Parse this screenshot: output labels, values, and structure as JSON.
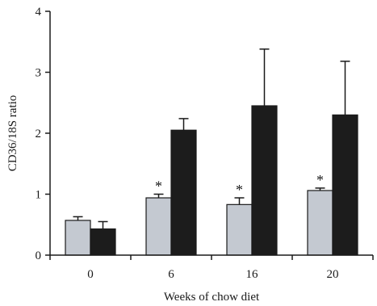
{
  "chart_data": {
    "type": "bar",
    "title": "",
    "xlabel": "Weeks of chow diet",
    "ylabel": "CD36/18S ratio",
    "categories": [
      "0",
      "6",
      "16",
      "20"
    ],
    "ylim": [
      0,
      4
    ],
    "yticks": [
      0,
      1,
      2,
      3,
      4
    ],
    "grid": false,
    "legend": "none",
    "series": [
      {
        "color": "#c4c9d1",
        "values": [
          0.57,
          0.94,
          0.83,
          1.06
        ],
        "errors": [
          0.06,
          0.06,
          0.11,
          0.04
        ]
      },
      {
        "color": "#1c1c1c",
        "values": [
          0.43,
          2.05,
          2.45,
          2.3
        ],
        "errors": [
          0.12,
          0.19,
          0.93,
          0.88
        ]
      }
    ],
    "annotations": [
      {
        "category": "6",
        "series": 0,
        "text": "*"
      },
      {
        "category": "16",
        "series": 0,
        "text": "*"
      },
      {
        "category": "20",
        "series": 0,
        "text": "*"
      }
    ]
  }
}
